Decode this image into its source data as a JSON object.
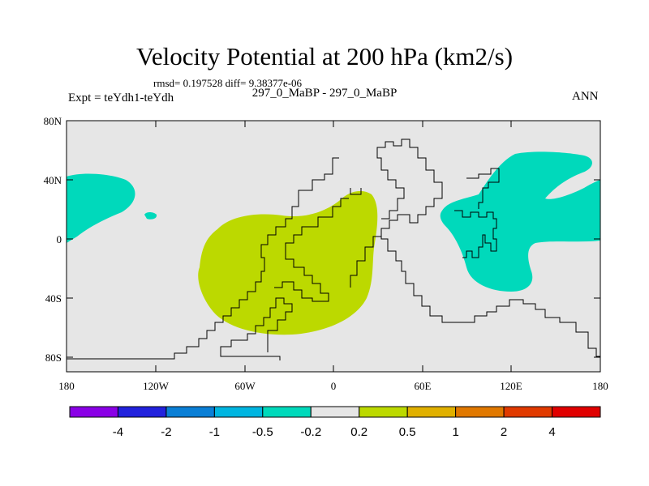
{
  "title": "Velocity Potential at 200 hPa (km2/s)",
  "stats": "rmsd= 0.197528 diff= 9.38377e-06",
  "expt": "Expt = teYdh1-teYdh",
  "case": "297_0_MaBP - 297_0_MaBP",
  "season": "ANN",
  "map": {
    "background_color": "#e6e6e6",
    "positive_fill": "#bcd900",
    "negative_fill": "#00d9bb",
    "y_tick_labels": [
      "80N",
      "40N",
      "0",
      "40S",
      "80S"
    ],
    "x_tick_labels": [
      "180",
      "120W",
      "60W",
      "0",
      "60E",
      "120E",
      "180"
    ]
  },
  "colorbar": {
    "colors": [
      "#8a00e6",
      "#2222dd",
      "#0a7fd6",
      "#00b5e0",
      "#00d9bb",
      "#e6e6e6",
      "#bcd900",
      "#e0b000",
      "#e07800",
      "#e03a00",
      "#e00000"
    ],
    "labels": [
      "-4",
      "-2",
      "-1",
      "-0.5",
      "-0.2",
      "0.2",
      "0.5",
      "1",
      "2",
      "4"
    ]
  }
}
